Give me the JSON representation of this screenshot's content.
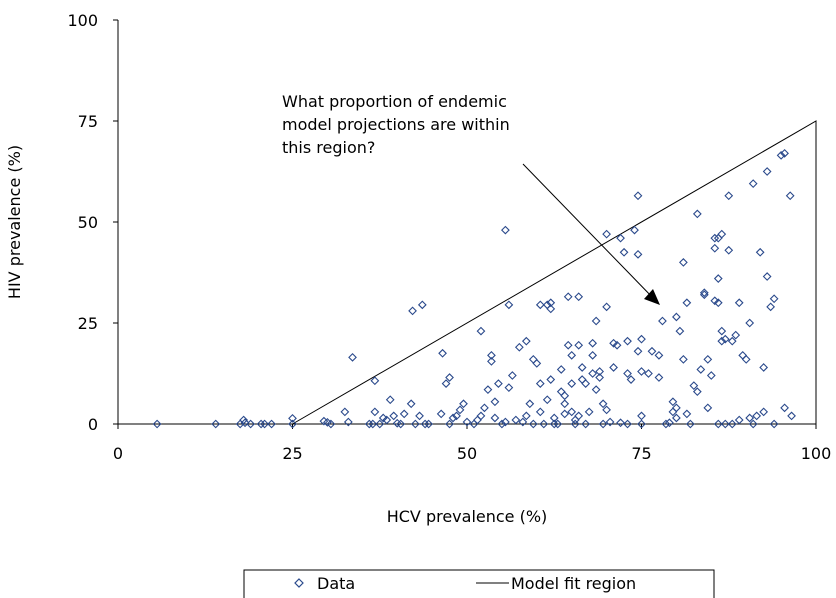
{
  "chart_data": {
    "type": "scatter",
    "xlabel": "HCV prevalence (%)",
    "ylabel": "HIV prevalence (%)",
    "xlim": [
      0,
      100
    ],
    "ylim": [
      0,
      100
    ],
    "x_ticks": [
      "0",
      "25",
      "50",
      "75",
      "100"
    ],
    "y_ticks": [
      "0",
      "25",
      "50",
      "75",
      "100"
    ],
    "annotation": [
      "What proportion of endemic",
      "model projections are within",
      "this region?"
    ],
    "region": {
      "name": "Model fit region",
      "vertices": [
        [
          25,
          0
        ],
        [
          100,
          75
        ],
        [
          100,
          0
        ]
      ]
    },
    "legend": {
      "placement": "bottom",
      "entries": [
        "Data",
        "Model fit region"
      ]
    },
    "marker_color": "#2b4a8c",
    "series": [
      {
        "name": "Data",
        "points": [
          [
            5.6,
            0
          ],
          [
            14,
            0
          ],
          [
            17.5,
            0
          ],
          [
            18,
            1
          ],
          [
            18.2,
            0.3
          ],
          [
            19,
            0
          ],
          [
            20.5,
            0
          ],
          [
            21,
            0
          ],
          [
            22,
            0
          ],
          [
            25,
            1.4
          ],
          [
            25,
            0
          ],
          [
            29.5,
            0.7
          ],
          [
            30,
            0.4
          ],
          [
            30.5,
            0
          ],
          [
            32.5,
            3
          ],
          [
            33,
            0.5
          ],
          [
            33.6,
            16.5
          ],
          [
            36,
            0
          ],
          [
            36.5,
            0
          ],
          [
            36.8,
            3
          ],
          [
            36.8,
            10.7
          ],
          [
            37.5,
            0
          ],
          [
            38,
            1.5
          ],
          [
            38.5,
            1
          ],
          [
            39,
            6
          ],
          [
            39.5,
            2
          ],
          [
            40,
            0.2
          ],
          [
            40.5,
            0
          ],
          [
            41,
            2.5
          ],
          [
            42,
            5
          ],
          [
            42.2,
            28
          ],
          [
            42.6,
            0
          ],
          [
            43.2,
            2
          ],
          [
            43.6,
            29.5
          ],
          [
            44,
            0
          ],
          [
            44.5,
            0
          ],
          [
            46.3,
            2.5
          ],
          [
            46.5,
            17.5
          ],
          [
            47,
            10
          ],
          [
            47.5,
            11.5
          ],
          [
            47.5,
            0
          ],
          [
            48,
            1.5
          ],
          [
            48.5,
            2
          ],
          [
            49,
            3.5
          ],
          [
            49.5,
            5
          ],
          [
            50,
            0.5
          ],
          [
            51,
            0
          ],
          [
            51.5,
            1
          ],
          [
            52,
            2
          ],
          [
            52,
            23
          ],
          [
            52.5,
            4
          ],
          [
            53,
            8.5
          ],
          [
            53.5,
            15.5
          ],
          [
            53.5,
            17
          ],
          [
            54,
            5.5
          ],
          [
            54,
            1.5
          ],
          [
            54.5,
            10
          ],
          [
            55,
            0
          ],
          [
            55.5,
            0.5
          ],
          [
            56,
            29.5
          ],
          [
            55.5,
            48
          ],
          [
            56,
            9
          ],
          [
            56.5,
            12
          ],
          [
            57,
            1
          ],
          [
            57.5,
            19
          ],
          [
            58,
            0.5
          ],
          [
            58.5,
            20.5
          ],
          [
            58.5,
            2
          ],
          [
            59,
            5
          ],
          [
            59.5,
            0
          ],
          [
            59.5,
            16
          ],
          [
            60,
            15
          ],
          [
            60.5,
            29.5
          ],
          [
            60.5,
            10
          ],
          [
            60.5,
            3
          ],
          [
            61,
            0
          ],
          [
            61.5,
            29.5
          ],
          [
            61.5,
            6
          ],
          [
            62,
            28.5
          ],
          [
            62,
            30
          ],
          [
            62,
            11
          ],
          [
            62.5,
            1.5
          ],
          [
            62.5,
            0
          ],
          [
            63,
            0
          ],
          [
            63.5,
            13.5
          ],
          [
            63.5,
            8
          ],
          [
            64,
            7
          ],
          [
            64,
            2.5
          ],
          [
            64,
            5
          ],
          [
            64.5,
            31.5
          ],
          [
            64.5,
            19.5
          ],
          [
            65,
            17
          ],
          [
            65,
            10
          ],
          [
            65,
            3
          ],
          [
            65.5,
            0
          ],
          [
            65.5,
            1
          ],
          [
            66,
            31.5
          ],
          [
            66,
            19.5
          ],
          [
            66,
            2
          ],
          [
            66.5,
            14
          ],
          [
            66.5,
            11
          ],
          [
            67,
            10
          ],
          [
            67,
            0
          ],
          [
            67.5,
            3
          ],
          [
            68,
            20
          ],
          [
            68,
            17
          ],
          [
            68,
            12.5
          ],
          [
            68.5,
            25.5
          ],
          [
            68.5,
            8.5
          ],
          [
            69,
            13
          ],
          [
            69,
            11.5
          ],
          [
            69.5,
            5
          ],
          [
            69.5,
            0
          ],
          [
            70,
            47
          ],
          [
            70,
            29
          ],
          [
            70,
            3.5
          ],
          [
            70.5,
            0.5
          ],
          [
            71,
            20
          ],
          [
            71,
            14
          ],
          [
            71.5,
            19.5
          ],
          [
            72,
            0.3
          ],
          [
            72,
            46
          ],
          [
            72.5,
            42.5
          ],
          [
            73,
            0
          ],
          [
            73,
            20.5
          ],
          [
            73,
            12.5
          ],
          [
            73.5,
            11
          ],
          [
            74,
            48
          ],
          [
            74.5,
            56.5
          ],
          [
            74.5,
            42
          ],
          [
            74.5,
            18
          ],
          [
            75,
            13
          ],
          [
            75,
            21
          ],
          [
            75,
            2
          ],
          [
            75,
            0
          ],
          [
            76,
            12.5
          ],
          [
            76.5,
            18
          ],
          [
            77.5,
            17
          ],
          [
            77.5,
            11.5
          ],
          [
            78,
            25.5
          ],
          [
            78.5,
            0
          ],
          [
            79,
            0.3
          ],
          [
            79.5,
            5.5
          ],
          [
            79.5,
            3
          ],
          [
            80,
            4
          ],
          [
            80,
            1.5
          ],
          [
            80,
            26.5
          ],
          [
            80.5,
            23
          ],
          [
            81,
            40
          ],
          [
            81,
            16
          ],
          [
            81.5,
            2.5
          ],
          [
            81.5,
            30
          ],
          [
            82,
            0
          ],
          [
            82.5,
            9.5
          ],
          [
            83,
            8
          ],
          [
            83,
            52
          ],
          [
            83.5,
            13.5
          ],
          [
            84,
            32
          ],
          [
            84,
            32.5
          ],
          [
            84.5,
            16
          ],
          [
            84.5,
            4
          ],
          [
            85,
            12
          ],
          [
            85.5,
            46
          ],
          [
            85.5,
            30.5
          ],
          [
            85.5,
            43.5
          ],
          [
            86,
            46
          ],
          [
            86,
            30
          ],
          [
            86,
            0
          ],
          [
            86.5,
            47
          ],
          [
            86,
            36
          ],
          [
            86.5,
            23
          ],
          [
            86.5,
            20.5
          ],
          [
            87,
            0
          ],
          [
            87,
            21
          ],
          [
            87.5,
            43
          ],
          [
            87.5,
            56.5
          ],
          [
            88,
            20.5
          ],
          [
            88,
            0
          ],
          [
            88.5,
            22
          ],
          [
            89,
            30
          ],
          [
            89,
            1
          ],
          [
            89.5,
            17
          ],
          [
            90,
            16
          ],
          [
            90.5,
            25
          ],
          [
            90.5,
            1.5
          ],
          [
            91,
            59.5
          ],
          [
            91,
            0
          ],
          [
            91.5,
            2
          ],
          [
            92,
            42.5
          ],
          [
            92.5,
            14
          ],
          [
            92.5,
            3
          ],
          [
            93,
            62.5
          ],
          [
            93,
            36.5
          ],
          [
            93.5,
            29
          ],
          [
            94,
            31
          ],
          [
            94,
            0
          ],
          [
            95,
            66.5
          ],
          [
            95.5,
            67
          ],
          [
            95.5,
            4
          ],
          [
            96.3,
            56.5
          ],
          [
            96.5,
            2
          ]
        ]
      }
    ]
  }
}
